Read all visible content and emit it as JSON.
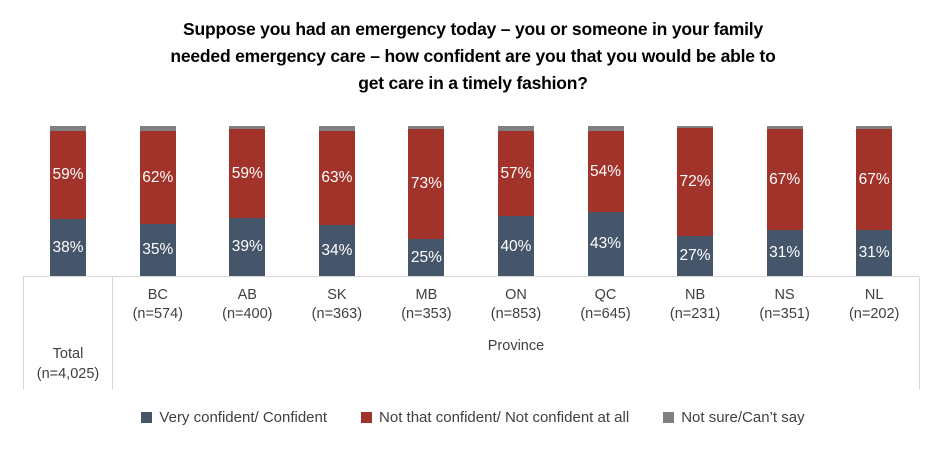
{
  "title": {
    "line1": "Suppose you had an emergency today – you or someone in your family",
    "line2": "needed emergency care – how confident are you that you would be able to",
    "line3": "get care in a timely fashion?"
  },
  "axis": {
    "total_label": "Total",
    "total_n": "(n=4,025)",
    "group_label": "Province"
  },
  "legend": [
    {
      "label": "Very confident/ Confident",
      "color": "#46566A"
    },
    {
      "label": "Not that confident/ Not confident at all",
      "color": "#A2332B"
    },
    {
      "label": "Not sure/Can’t say",
      "color": "#808080"
    }
  ],
  "chart_data": {
    "type": "bar",
    "stacked": true,
    "percent_stacked": true,
    "title": "Suppose you had an emergency today – you or someone in your family needed emergency care – how confident are you that you would be able to get care in a timely fashion?",
    "categories": [
      {
        "label": "Total",
        "n": "(n=4,025)",
        "group": "Total"
      },
      {
        "label": "BC",
        "n": "(n=574)",
        "group": "Province"
      },
      {
        "label": "AB",
        "n": "(n=400)",
        "group": "Province"
      },
      {
        "label": "SK",
        "n": "(n=363)",
        "group": "Province"
      },
      {
        "label": "MB",
        "n": "(n=353)",
        "group": "Province"
      },
      {
        "label": "ON",
        "n": "(n=853)",
        "group": "Province"
      },
      {
        "label": "QC",
        "n": "(n=645)",
        "group": "Province"
      },
      {
        "label": "NB",
        "n": "(n=231)",
        "group": "Province"
      },
      {
        "label": "NS",
        "n": "(n=351)",
        "group": "Province"
      },
      {
        "label": "NL",
        "n": "(n=202)",
        "group": "Province"
      }
    ],
    "series": [
      {
        "name": "Very confident/ Confident",
        "color": "#46566A",
        "labeled": true,
        "values": [
          38,
          35,
          39,
          34,
          25,
          40,
          43,
          27,
          31,
          31
        ]
      },
      {
        "name": "Not that confident/ Not confident at all",
        "color": "#A2332B",
        "labeled": true,
        "values": [
          59,
          62,
          59,
          63,
          73,
          57,
          54,
          72,
          67,
          67
        ]
      },
      {
        "name": "Not sure/Can’t say",
        "color": "#808080",
        "labeled": false,
        "values": [
          3,
          3,
          2,
          3,
          2,
          3,
          3,
          1,
          2,
          2
        ]
      }
    ],
    "value_suffix": "%",
    "ylim": [
      0,
      100
    ],
    "grid": false,
    "legend_position": "bottom"
  }
}
